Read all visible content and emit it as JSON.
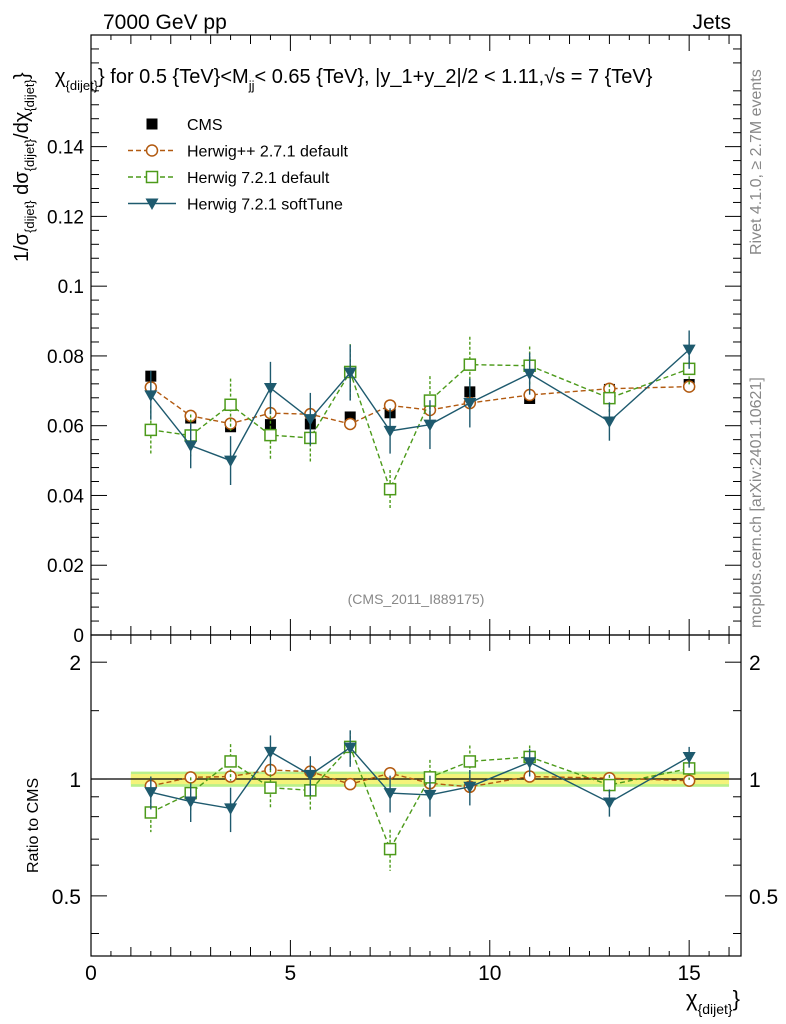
{
  "header": {
    "left": "7000 GeV pp",
    "right": "Jets",
    "title_main": "χ",
    "title_sub": "{dijet}",
    "title_rest": "} for 0.5 {TeV}<M",
    "title_sub2": "jj",
    "title_rest2": "< 0.65 {TeV}, |y_1+y_2|/2 < 1.11,",
    "title_sqrt": "√s = 7 {TeV}"
  },
  "side": {
    "rivet": "Rivet 4.1.0, ≥ 2.7M events",
    "mcplots": "mcplots.cern.ch [arXiv:2401.10621]"
  },
  "watermark": "(CMS_2011_I889175)",
  "axes": {
    "ylabel_main": "1/σ{dijet} dσ{dijet}/dχ{dijet}",
    "ylabel_ratio": "Ratio to CMS",
    "xlabel": "χ{dijet}"
  },
  "chart_data": [
    {
      "type": "line",
      "panel": "main",
      "xlim": [
        0,
        16.3
      ],
      "ylim": [
        0,
        0.172
      ],
      "yticks": [
        0,
        0.02,
        0.04,
        0.06,
        0.08,
        0.1,
        0.12,
        0.14
      ],
      "ytick_labels": [
        "0",
        "0.02",
        "0.04",
        "0.06",
        "0.08",
        "0.1",
        "0.12",
        "0.14"
      ],
      "x": [
        1.5,
        2.5,
        3.5,
        4.5,
        5.5,
        6.5,
        7.5,
        8.5,
        9.5,
        11,
        13,
        15
      ],
      "series": [
        {
          "name": "CMS",
          "color": "#000000",
          "marker": "square-filled",
          "values": [
            0.0742,
            0.0622,
            0.0597,
            0.0603,
            0.0605,
            0.0625,
            0.0637,
            0.0663,
            0.0697,
            0.0678,
            0.0704,
            0.0718
          ],
          "errors": [
            0.001,
            0.001,
            0.001,
            0.001,
            0.001,
            0.001,
            0.001,
            0.001,
            0.001,
            0.001,
            0.001,
            0.001
          ]
        },
        {
          "name": "Herwig++ 2.7.1 default",
          "color": "#b25a10",
          "marker": "circle-open",
          "dash": "5,3",
          "values": [
            0.071,
            0.0628,
            0.0606,
            0.0636,
            0.0633,
            0.0605,
            0.0658,
            0.0645,
            0.0665,
            0.0688,
            0.0706,
            0.0712
          ],
          "errors": [
            0,
            0,
            0,
            0,
            0,
            0,
            0,
            0,
            0,
            0,
            0,
            0
          ]
        },
        {
          "name": "Herwig 7.2.1 default",
          "color": "#4c9a1a",
          "marker": "square-open",
          "dash": "5,3",
          "values": [
            0.0588,
            0.0572,
            0.066,
            0.0573,
            0.0565,
            0.0754,
            0.0418,
            0.0672,
            0.0775,
            0.0772,
            0.0679,
            0.0763
          ],
          "errors": [
            0.007,
            0.006,
            0.0075,
            0.007,
            0.007,
            0.008,
            0.0055,
            0.007,
            0.008,
            0.0055,
            0.004,
            0.005
          ]
        },
        {
          "name": "Herwig 7.2.1 softTune",
          "color": "#1e5a6e",
          "marker": "triangle-down-filled",
          "values": [
            0.0687,
            0.0543,
            0.05,
            0.0708,
            0.0619,
            0.0752,
            0.0585,
            0.0603,
            0.0665,
            0.0749,
            0.0612,
            0.0818
          ],
          "errors": [
            0.007,
            0.0065,
            0.007,
            0.0075,
            0.0075,
            0.008,
            0.0065,
            0.007,
            0.007,
            0.006,
            0.0055,
            0.0055
          ]
        }
      ]
    },
    {
      "type": "line",
      "panel": "ratio",
      "xlim": [
        0,
        16.3
      ],
      "ylim": [
        0.35,
        2.35
      ],
      "yscale": "log",
      "yticks": [
        0.5,
        1,
        2
      ],
      "ytick_labels": [
        "0.5",
        "1",
        "2"
      ],
      "xticks": [
        0,
        5,
        10,
        15
      ],
      "xtick_labels": [
        "0",
        "5",
        "10",
        "15"
      ],
      "band": {
        "inner": [
          0.97,
          1.03
        ],
        "outer": [
          0.955,
          1.045
        ]
      },
      "x": [
        1.5,
        2.5,
        3.5,
        4.5,
        5.5,
        6.5,
        7.5,
        8.5,
        9.5,
        11,
        13,
        15
      ],
      "series": [
        {
          "name": "Herwig++ 2.7.1 default",
          "color": "#b25a10",
          "marker": "circle-open",
          "dash": "5,3",
          "values": [
            0.96,
            1.01,
            1.015,
            1.055,
            1.045,
            0.97,
            1.035,
            0.975,
            0.955,
            1.015,
            1.005,
            0.99
          ],
          "errors": [
            0,
            0,
            0,
            0,
            0,
            0,
            0,
            0,
            0,
            0,
            0,
            0
          ]
        },
        {
          "name": "Herwig 7.2.1 default",
          "color": "#4c9a1a",
          "marker": "square-open",
          "dash": "5,3",
          "values": [
            0.82,
            0.92,
            1.11,
            0.95,
            0.935,
            1.21,
            0.66,
            1.01,
            1.11,
            1.14,
            0.965,
            1.065
          ],
          "errors": [
            0.09,
            0.09,
            0.12,
            0.11,
            0.11,
            0.12,
            0.08,
            0.11,
            0.11,
            0.08,
            0.06,
            0.07
          ]
        },
        {
          "name": "Herwig 7.2.1 softTune",
          "color": "#1e5a6e",
          "marker": "triangle-down-filled",
          "values": [
            0.925,
            0.875,
            0.84,
            1.175,
            1.025,
            1.205,
            0.92,
            0.91,
            0.955,
            1.105,
            0.87,
            1.14
          ],
          "errors": [
            0.09,
            0.1,
            0.11,
            0.12,
            0.12,
            0.13,
            0.1,
            0.11,
            0.1,
            0.09,
            0.07,
            0.07
          ]
        }
      ]
    }
  ],
  "legend": [
    {
      "label": "CMS",
      "color": "#000000",
      "marker": "square-filled"
    },
    {
      "label": "Herwig++ 2.7.1 default",
      "color": "#b25a10",
      "marker": "circle-open",
      "dash": "5,3"
    },
    {
      "label": "Herwig 7.2.1 default",
      "color": "#4c9a1a",
      "marker": "square-open",
      "dash": "5,3"
    },
    {
      "label": "Herwig 7.2.1 softTune",
      "color": "#1e5a6e",
      "marker": "triangle-down-filled"
    }
  ],
  "colors": {
    "band_inner": "#f4f37a",
    "band_outer": "#b8f08a"
  }
}
